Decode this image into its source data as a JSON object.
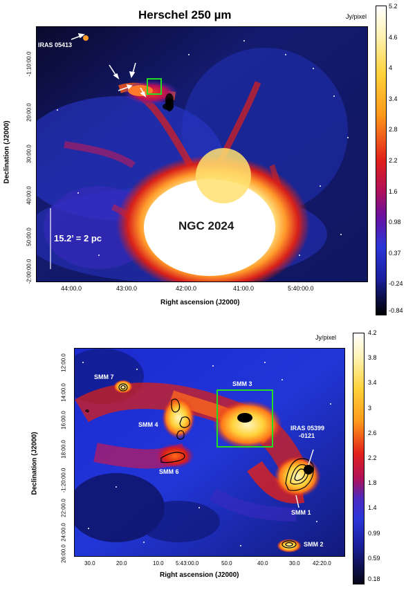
{
  "top": {
    "title": "Herschel 250 µm",
    "unit": "Jy/pixel",
    "region_label": "NGC 2024",
    "iras_label": "IRAS 05413",
    "scale_label": "15.2’ = 2 pc",
    "xlabel": "Right ascension (J2000)",
    "ylabel": "Declination (J2000)",
    "xticks": [
      "44:00.0",
      "43:00.0",
      "42:00.0",
      "41:00.0",
      "5:40:00.0"
    ],
    "yticks": [
      "-1:10:00.0",
      "20:00.0",
      "30:00.0",
      "40:00.0",
      "50:00.0",
      "-2:00:00.0"
    ],
    "colorbar_ticks": [
      "5.2",
      "4.6",
      "4",
      "3.4",
      "2.8",
      "2.2",
      "1.6",
      "0.98",
      "0.37",
      "-0.24",
      "-0.84"
    ]
  },
  "bottom": {
    "unit": "Jy/pixel",
    "xlabel": "Right ascension (J2000)",
    "ylabel": "Declination (J2000)",
    "xticks": [
      "30.0",
      "20.0",
      "10.0",
      "5:43:00.0",
      "50.0",
      "40.0",
      "30.0",
      "42:20.0"
    ],
    "yticks": [
      "12:00.0",
      "14:00.0",
      "16:00.0",
      "18:00.0",
      "-1:20:00.0",
      "22:00.0",
      "24:00.0",
      "26:00.0"
    ],
    "sources": [
      "SMM 7",
      "SMM 3",
      "SMM 4",
      "IRAS 05399",
      "-0121",
      "SMM 6",
      "SMM 1",
      "SMM 2"
    ],
    "colorbar_ticks": [
      "4.2",
      "3.8",
      "3.4",
      "3",
      "2.6",
      "2.2",
      "1.8",
      "1.4",
      "0.99",
      "0.59",
      "0.18"
    ]
  },
  "colors": {
    "background_blue": "#1a1fb8",
    "box_green": "#22dd22",
    "hot_white": "#ffffff",
    "warm_red": "#e0201a",
    "warm_yellow": "#ffd23a"
  }
}
